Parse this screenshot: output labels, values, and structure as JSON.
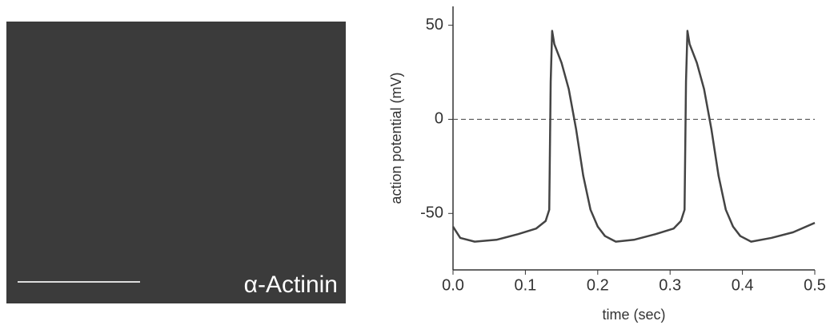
{
  "image": {
    "label": "α-Actinin"
  },
  "chart_data": {
    "type": "line",
    "x_label": "time (sec)",
    "y_label": "action potential (mV)",
    "x": [
      0,
      0.01,
      0.03,
      0.06,
      0.09,
      0.115,
      0.128,
      0.133,
      0.135,
      0.137,
      0.14,
      0.15,
      0.16,
      0.17,
      0.18,
      0.19,
      0.2,
      0.21,
      0.225,
      0.25,
      0.28,
      0.305,
      0.315,
      0.32,
      0.322,
      0.324,
      0.327,
      0.337,
      0.347,
      0.357,
      0.367,
      0.377,
      0.387,
      0.397,
      0.412,
      0.44,
      0.47,
      0.5
    ],
    "series": [
      {
        "color": "#444444",
        "values": [
          -57,
          -63,
          -65,
          -64,
          -61,
          -58,
          -54,
          -48,
          20,
          47,
          40,
          30,
          16,
          -5,
          -30,
          -48,
          -57,
          -62,
          -65,
          -64,
          -61,
          -58,
          -54,
          -48,
          20,
          47,
          40,
          30,
          16,
          -5,
          -30,
          -48,
          -57,
          -62,
          -65,
          -63,
          -60,
          -55
        ]
      }
    ],
    "reference_line": 0,
    "xlim": [
      0,
      0.5
    ],
    "ylim": [
      -80,
      60
    ],
    "xticks": [
      {
        "value": 0,
        "label": "0.0"
      },
      {
        "value": 0.1,
        "label": "0.1"
      },
      {
        "value": 0.2,
        "label": "0.2"
      },
      {
        "value": 0.3,
        "label": "0.3"
      },
      {
        "value": 0.4,
        "label": "0.4"
      },
      {
        "value": 0.5,
        "label": "0.5"
      }
    ],
    "yticks": [
      50,
      0,
      -50
    ]
  }
}
